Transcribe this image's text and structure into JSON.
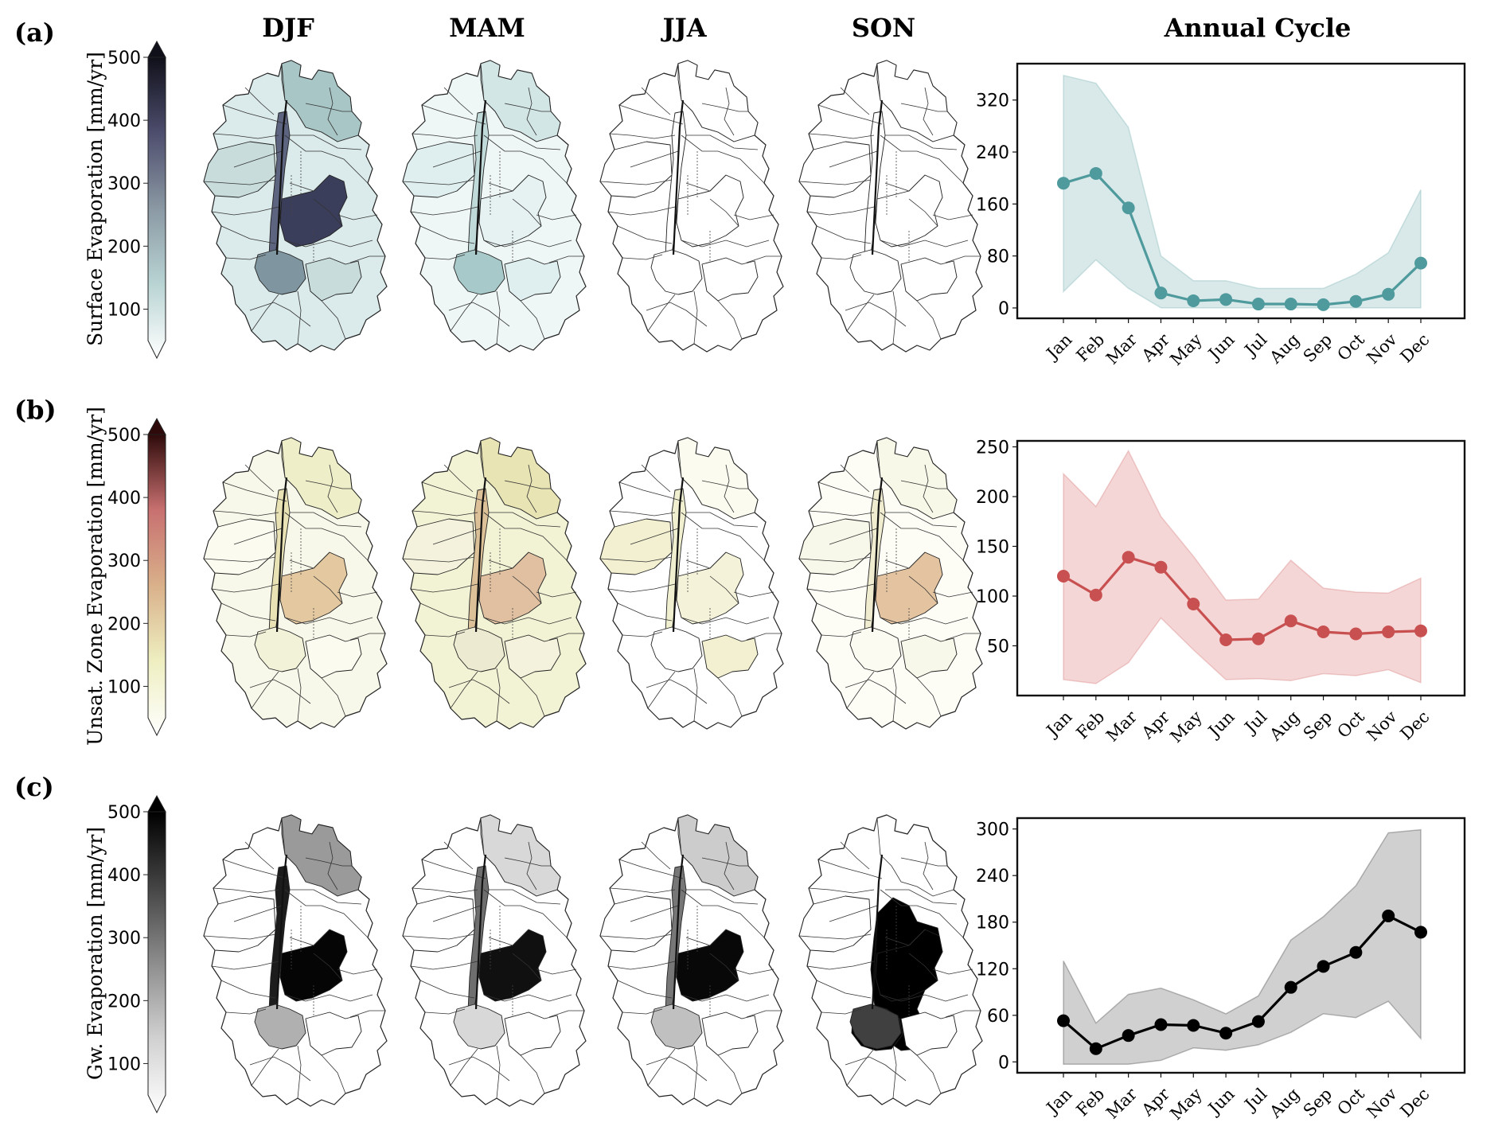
{
  "figure": {
    "season_headers": [
      "DJF",
      "MAM",
      "JJA",
      "SON"
    ],
    "annual_header": "Annual Cycle",
    "panels": [
      {
        "label": "(a)",
        "colorbar_label": "Surface Evaporation [mm/yr]",
        "colorbar_ticks": [
          100,
          200,
          300,
          400,
          500
        ],
        "colormap": [
          "#ffffff",
          "#b8d3d3",
          "#8a98a3",
          "#4d4d6d",
          "#10101a"
        ],
        "line_color": "#4e9a9c",
        "band_color": "#cfe2e3",
        "map_colors": {
          "DJF": [
            "#dbeaea",
            "#a9c6c6",
            "#5d6480",
            "#3b3e5b",
            "#7f96a0",
            "#c8dcdc"
          ],
          "MAM": [
            "#eef6f6",
            "#d3e6e6",
            "#c0d9d9",
            "#e6f1f1",
            "#a8c9c9",
            "#dfeeee"
          ],
          "JJA": [
            "#ffffff",
            "#ffffff",
            "#ffffff",
            "#ffffff",
            "#ffffff",
            "#ffffff"
          ],
          "SON": [
            "#ffffff",
            "#ffffff",
            "#ffffff",
            "#ffffff",
            "#ffffff",
            "#ffffff"
          ]
        }
      },
      {
        "label": "(b)",
        "colorbar_label": "Unsat. Zone Evaporation [mm/yr]",
        "colorbar_ticks": [
          100,
          200,
          300,
          400,
          500
        ],
        "colormap": [
          "#ffffff",
          "#eeeec0",
          "#d9b08a",
          "#c87070",
          "#2e0a0a"
        ],
        "line_color": "#c85050",
        "band_color": "#f2cccc",
        "map_colors": {
          "DJF": [
            "#f8f8ea",
            "#eeeec8",
            "#e8e2b4",
            "#e4c8a0",
            "#f2f2d8",
            "#fbfbf0"
          ],
          "MAM": [
            "#f2f2d4",
            "#e8e4b4",
            "#dcc098",
            "#e0c0a0",
            "#ecead0",
            "#f4f2dc"
          ],
          "JJA": [
            "#ffffff",
            "#fbfbf0",
            "#f0f0d0",
            "#f4f2d8",
            "#ffffff",
            "#f2f0d0"
          ],
          "SON": [
            "#fdfdf6",
            "#f8f8e8",
            "#f0ecd0",
            "#e4c4a0",
            "#fbfbf2",
            "#f8f8ea"
          ]
        }
      },
      {
        "label": "(c)",
        "colorbar_label": "Gw. Evaporation [mm/yr]",
        "colorbar_ticks": [
          100,
          200,
          300,
          400,
          500
        ],
        "colormap": [
          "#ffffff",
          "#d0d0d0",
          "#8c8c8c",
          "#444444",
          "#000000"
        ],
        "line_color": "#000000",
        "band_color": "#c4c4c4",
        "map_colors": {
          "DJF": [
            "#ffffff",
            "#9a9a9a",
            "#1c1c1c",
            "#050505",
            "#b0b0b0",
            "#ffffff"
          ],
          "MAM": [
            "#ffffff",
            "#d8d8d8",
            "#6e6e6e",
            "#101010",
            "#d8d8d8",
            "#ffffff"
          ],
          "JJA": [
            "#ffffff",
            "#cccccc",
            "#777777",
            "#080808",
            "#c0c0c0",
            "#ffffff"
          ],
          "SON": [
            "#ffffff",
            "#000000",
            "#000000",
            "#000000",
            "#404040",
            "#ffffff"
          ]
        }
      }
    ]
  },
  "chart_data": [
    {
      "type": "line",
      "title": "Annual Cycle",
      "series_name": "Surface Evaporation [mm/yr]",
      "categories": [
        "Jan",
        "Feb",
        "Mar",
        "Apr",
        "May",
        "Jun",
        "Jul",
        "Aug",
        "Sep",
        "Oct",
        "Nov",
        "Dec"
      ],
      "values": [
        192,
        207,
        154,
        23,
        11,
        13,
        6,
        6,
        5,
        10,
        21,
        69
      ],
      "band_upper": [
        358,
        346,
        278,
        80,
        42,
        42,
        30,
        30,
        30,
        52,
        85,
        182
      ],
      "band_lower": [
        25,
        74,
        30,
        0,
        0,
        0,
        0,
        0,
        0,
        0,
        0,
        0
      ],
      "yticks": [
        0,
        80,
        160,
        240,
        320
      ],
      "ylim": [
        -16,
        376
      ]
    },
    {
      "type": "line",
      "title": "Annual Cycle",
      "series_name": "Unsat. Zone Evaporation [mm/yr]",
      "categories": [
        "Jan",
        "Feb",
        "Mar",
        "Apr",
        "May",
        "Jun",
        "Jul",
        "Aug",
        "Sep",
        "Oct",
        "Nov",
        "Dec"
      ],
      "values": [
        120,
        101,
        139,
        129,
        92,
        56,
        57,
        75,
        64,
        62,
        64,
        65
      ],
      "band_upper": [
        223,
        190,
        246,
        180,
        140,
        96,
        97,
        136,
        108,
        104,
        103,
        118
      ],
      "band_lower": [
        16,
        12,
        33,
        78,
        46,
        16,
        17,
        15,
        22,
        20,
        26,
        13
      ],
      "yticks": [
        50,
        100,
        150,
        200,
        250
      ],
      "ylim": [
        0,
        256
      ]
    },
    {
      "type": "line",
      "title": "Annual Cycle",
      "series_name": "Gw. Evaporation [mm/yr]",
      "categories": [
        "Jan",
        "Feb",
        "Mar",
        "Apr",
        "May",
        "Jun",
        "Jul",
        "Aug",
        "Sep",
        "Oct",
        "Nov",
        "Dec"
      ],
      "values": [
        53,
        17,
        34,
        48,
        47,
        37,
        52,
        96,
        123,
        141,
        188,
        167
      ],
      "band_upper": [
        130,
        50,
        87,
        95,
        80,
        62,
        85,
        157,
        187,
        227,
        295,
        299
      ],
      "band_lower": [
        -3,
        -3,
        -3,
        2,
        18,
        15,
        22,
        38,
        62,
        57,
        78,
        30
      ],
      "yticks": [
        0,
        60,
        120,
        180,
        240,
        300
      ],
      "ylim": [
        -14,
        314
      ]
    }
  ]
}
